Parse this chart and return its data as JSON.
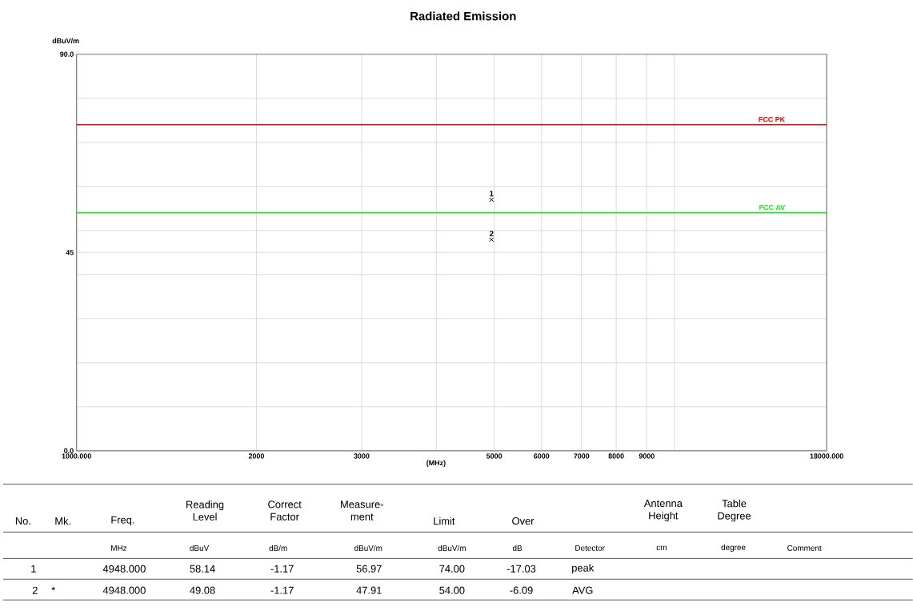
{
  "chart_data": {
    "type": "scatter",
    "title": "Radiated Emission",
    "ylabel": "dBuV/m",
    "xlabel": "(MHz)",
    "x": [
      4948,
      4948
    ],
    "values": [
      56.97,
      47.91
    ],
    "color": "#000000",
    "marker": "cross",
    "log": "x",
    "xlim": [
      1000,
      18000
    ],
    "xticks": [
      {
        "value": 1000,
        "label": "1000.000"
      },
      2000,
      3000,
      {
        "value": 4000,
        "label": null
      },
      5000,
      6000,
      7000,
      8000,
      9000,
      {
        "value": 10000,
        "label": null
      },
      {
        "value": 18000,
        "label": "18000.000"
      }
    ],
    "ylim": [
      0,
      90
    ],
    "yticks": [
      {
        "value": 0,
        "label": "0.0"
      },
      {
        "value": 10,
        "label": null
      },
      {
        "value": 20,
        "label": null
      },
      {
        "value": 30,
        "label": null
      },
      {
        "value": 40,
        "label": null
      },
      45,
      {
        "value": 50,
        "label": null
      },
      {
        "value": 60,
        "label": null
      },
      {
        "value": 70,
        "label": null
      },
      {
        "value": 80,
        "label": null
      },
      {
        "value": 90,
        "label": "90.0"
      }
    ],
    "grid": true,
    "ref_lines": [
      {
        "axis": "y",
        "value": 74,
        "label": "FCC PK",
        "color": "#ff0000"
      },
      {
        "axis": "y",
        "value": 54,
        "label": "FCC AV",
        "color": "#00ff00"
      }
    ],
    "annotations": [
      {
        "text": "1",
        "x": 4948,
        "y": 56.97
      },
      {
        "text": "2",
        "x": 4948,
        "y": 47.91
      },
      "No.",
      "Mk.",
      "Freq.",
      "Reading Level",
      "Correct Factor",
      "Measure-ment",
      "Limit",
      "Over",
      "Antenna Height",
      "Table Degree",
      "MHz",
      "dBuV",
      "dB/m",
      "dBuV/m",
      "dBuV/m",
      "dB",
      "Detector",
      "cm",
      "degree",
      "Comment",
      "1",
      "4948.000",
      "58.14",
      "-1.17",
      "56.97",
      "74.00",
      "-17.03",
      "peak",
      "2",
      "*",
      "4948.000",
      "49.08",
      "-1.17",
      "47.91",
      "54.00",
      "-6.09",
      "AVG"
    ]
  }
}
